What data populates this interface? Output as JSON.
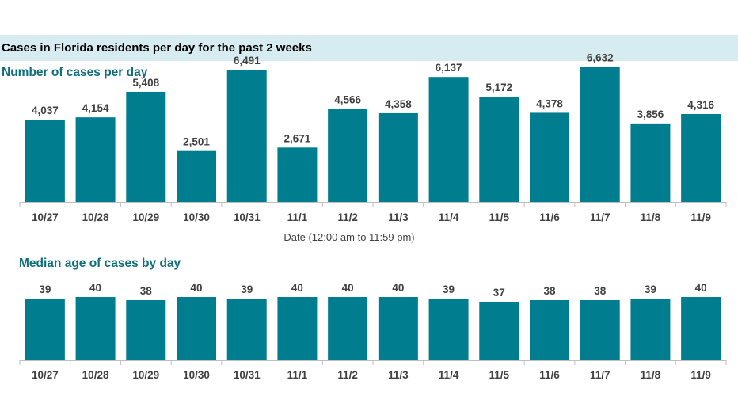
{
  "header": {
    "title": "Cases in Florida residents per day for the past 2 weeks"
  },
  "colors": {
    "bar": "#007d8f",
    "header_band": "#d6ecf1",
    "section_title": "#0f6e7c",
    "axis": "#bfbfbf"
  },
  "chart_data": [
    {
      "type": "bar",
      "title": "Number of cases per day",
      "xlabel": "Date (12:00 am to 11:59 pm)",
      "ylabel": "",
      "categories": [
        "10/27",
        "10/28",
        "10/29",
        "10/30",
        "10/31",
        "11/1",
        "11/2",
        "11/3",
        "11/4",
        "11/5",
        "11/6",
        "11/7",
        "11/8",
        "11/9"
      ],
      "values": [
        4037,
        4154,
        5408,
        2501,
        6491,
        2671,
        4566,
        4358,
        6137,
        5172,
        4378,
        6632,
        3856,
        4316
      ],
      "value_labels": [
        "4,037",
        "4,154",
        "5,408",
        "2,501",
        "6,491",
        "2,671",
        "4,566",
        "4,358",
        "6,137",
        "5,172",
        "4,378",
        "6,632",
        "3,856",
        "4,316"
      ],
      "ylim": [
        0,
        7000
      ],
      "grid": false
    },
    {
      "type": "bar",
      "title": "Median age of cases by day",
      "xlabel": "",
      "ylabel": "",
      "categories": [
        "10/27",
        "10/28",
        "10/29",
        "10/30",
        "10/31",
        "11/1",
        "11/2",
        "11/3",
        "11/4",
        "11/5",
        "11/6",
        "11/7",
        "11/8",
        "11/9"
      ],
      "values": [
        39,
        40,
        38,
        40,
        39,
        40,
        40,
        40,
        39,
        37,
        38,
        38,
        39,
        40
      ],
      "value_labels": [
        "39",
        "40",
        "38",
        "40",
        "39",
        "40",
        "40",
        "40",
        "39",
        "37",
        "38",
        "38",
        "39",
        "40"
      ],
      "ylim": [
        0,
        43
      ],
      "grid": false
    }
  ]
}
